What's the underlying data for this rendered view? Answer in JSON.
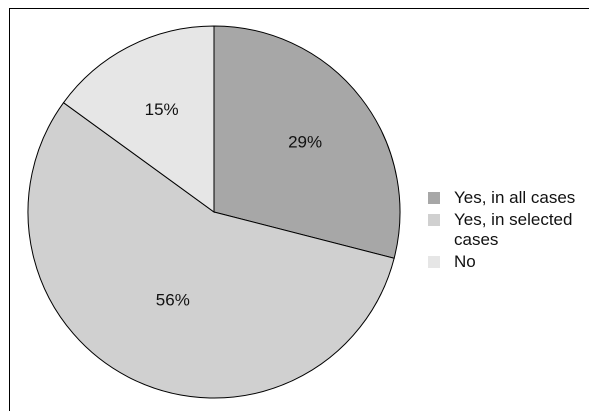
{
  "chart_data": {
    "type": "pie",
    "slices": [
      {
        "label": "Yes, in all cases",
        "value": 29,
        "display": "29%",
        "color": "#a7a7a7"
      },
      {
        "label": "Yes, in selected cases",
        "value": 56,
        "display": "56%",
        "color": "#d0d0d0"
      },
      {
        "label": "No",
        "value": 15,
        "display": "15%",
        "color": "#e6e6e6"
      }
    ],
    "start": "top (12 o'clock), clockwise",
    "legend": {
      "placement": "right"
    },
    "legend_labels": [
      "Yes, in all cases",
      "Yes, in selected cases",
      "No"
    ]
  }
}
